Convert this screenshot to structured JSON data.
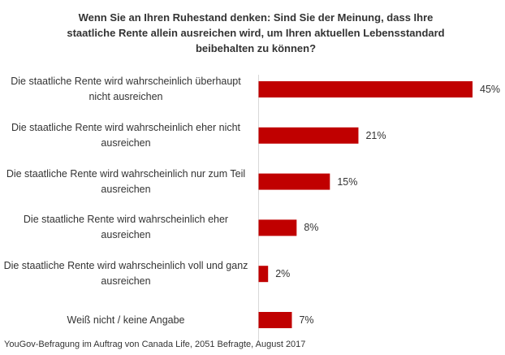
{
  "chart_data": {
    "type": "bar",
    "title": "Wenn Sie an Ihren Ruhestand denken: Sind Sie der Meinung, dass Ihre staatliche Rente allein ausreichen wird, um Ihren aktuellen Lebensstandard beibehalten zu können?",
    "categories": [
      "Die staatliche Rente wird wahrscheinlich überhaupt nicht ausreichen",
      "Die staatliche Rente wird wahrscheinlich eher nicht ausreichen",
      "Die staatliche Rente wird wahrscheinlich nur zum Teil ausreichen",
      "Die staatliche Rente wird wahrscheinlich eher ausreichen",
      "Die staatliche Rente wird wahrscheinlich voll und ganz ausreichen",
      "Weiß nicht / keine Angabe"
    ],
    "values": [
      45,
      21,
      15,
      8,
      2,
      7
    ],
    "value_labels": [
      "45%",
      "21%",
      "15%",
      "8%",
      "2%",
      "7%"
    ],
    "color": "#c00000",
    "source": "YouGov-Befragung im Auftrag von Canada Life, 2051 Befragte, August 2017"
  }
}
